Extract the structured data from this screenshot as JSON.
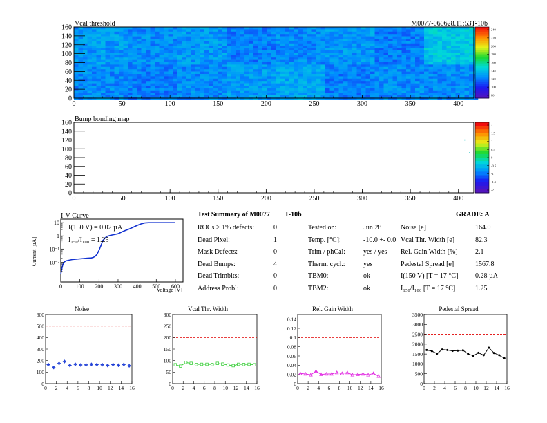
{
  "header": {
    "module_id": "M0077-060628.11:53T-10b"
  },
  "colors": {
    "noise": "#1f3fd6",
    "vcal": "#3ecf3e",
    "gain": "#e22ee2",
    "pedestal": "#000000",
    "limit": "#e00000",
    "iv": "#1030d0"
  },
  "chart_data": [
    {
      "type": "heatmap",
      "title": "Vcal threshold",
      "x_ticks": [
        0,
        50,
        100,
        150,
        200,
        250,
        300,
        350,
        400
      ],
      "y_ticks": [
        0,
        20,
        40,
        60,
        80,
        100,
        120,
        140,
        160
      ],
      "xlim": [
        0,
        416
      ],
      "ylim": [
        0,
        160
      ],
      "grid_cols": 8,
      "grid_rows": 2,
      "tile_levels": [
        [
          0.55,
          0.5,
          0.55,
          0.45,
          0.5,
          0.55,
          0.45,
          0.75
        ],
        [
          0.5,
          0.45,
          0.5,
          0.55,
          0.6,
          0.45,
          0.5,
          0.5
        ]
      ],
      "palette_labels": [
        "240",
        "220",
        "200",
        "180",
        "160",
        "140",
        "120",
        "100",
        "80"
      ]
    },
    {
      "type": "heatmap",
      "title": "Bump bonding map",
      "x_ticks": [
        0,
        50,
        100,
        150,
        200,
        250,
        300,
        350,
        400
      ],
      "y_ticks": [
        0,
        20,
        40,
        60,
        80,
        100,
        120,
        140,
        160
      ],
      "xlim": [
        0,
        416
      ],
      "ylim": [
        0,
        160
      ],
      "points": [
        [
          406,
          121
        ],
        [
          411,
          92
        ]
      ],
      "palette_labels": [
        "2",
        "1.5",
        "1",
        "0.5",
        "0",
        "-0.5",
        "-1",
        "-1.5",
        "-2"
      ]
    },
    {
      "type": "line",
      "title": "I-V-Curve",
      "xlabel": "Voltage [V]",
      "ylabel": "Current [µA]",
      "xlim": [
        0,
        640
      ],
      "x_ticks": [
        0,
        100,
        200,
        300,
        400,
        500,
        600
      ],
      "log_y": true,
      "y_ticks": [
        "10",
        "1",
        "10⁻¹",
        "10⁻²"
      ],
      "annotations": [
        "I(150 V) = 0.02 µA",
        "I₁₅₀/I₁₀₀ = 1.25"
      ],
      "x": [
        0,
        3,
        6,
        10,
        15,
        20,
        30,
        40,
        60,
        80,
        100,
        120,
        140,
        160,
        170,
        180,
        190,
        200,
        210,
        220,
        240,
        260,
        280,
        300,
        320,
        340,
        360,
        380,
        400,
        420,
        440,
        460,
        480,
        500,
        520,
        540,
        560,
        580,
        600
      ],
      "y": [
        0.0012,
        0.002,
        0.0035,
        0.006,
        0.009,
        0.011,
        0.013,
        0.014,
        0.016,
        0.017,
        0.018,
        0.019,
        0.02,
        0.021,
        0.023,
        0.028,
        0.04,
        0.08,
        0.18,
        0.45,
        0.9,
        1.1,
        1.25,
        1.45,
        2.0,
        2.6,
        3.4,
        4.6,
        6.2,
        8.0,
        9.5,
        10.0,
        10.0,
        10.0,
        10.0,
        10.0,
        10.0,
        10.0,
        10.0
      ]
    },
    {
      "type": "scatter",
      "title": "Noise",
      "xlim": [
        0,
        16
      ],
      "ylim": [
        0,
        600
      ],
      "x_ticks": [
        0,
        2,
        4,
        6,
        8,
        10,
        12,
        14,
        16
      ],
      "y_ticks": [
        0,
        100,
        200,
        300,
        400,
        500,
        600
      ],
      "limit": 500,
      "x": [
        0.5,
        1.5,
        2.5,
        3.5,
        4.5,
        5.5,
        6.5,
        7.5,
        8.5,
        9.5,
        10.5,
        11.5,
        12.5,
        13.5,
        14.5,
        15.5
      ],
      "values": [
        165,
        140,
        175,
        192,
        158,
        168,
        162,
        163,
        167,
        165,
        164,
        158,
        165,
        160,
        166,
        155
      ],
      "errors": [
        15,
        15,
        15,
        15,
        15,
        15,
        15,
        15,
        15,
        15,
        15,
        15,
        15,
        15,
        15,
        15
      ]
    },
    {
      "type": "line",
      "title": "Vcal Thr. Width",
      "xlim": [
        0,
        16
      ],
      "ylim": [
        0,
        300
      ],
      "x_ticks": [
        0,
        2,
        4,
        6,
        8,
        10,
        12,
        14,
        16
      ],
      "y_ticks": [
        0,
        50,
        100,
        150,
        200,
        250,
        300
      ],
      "limit": 200,
      "x": [
        0.5,
        1.5,
        2.5,
        3.5,
        4.5,
        5.5,
        6.5,
        7.5,
        8.5,
        9.5,
        10.5,
        11.5,
        12.5,
        13.5,
        14.5,
        15.5
      ],
      "values": [
        82,
        76,
        92,
        88,
        83,
        84,
        84,
        83,
        88,
        85,
        81,
        78,
        84,
        83,
        84,
        82
      ]
    },
    {
      "type": "line",
      "title": "Rel. Gain Width",
      "xlim": [
        0,
        16
      ],
      "ylim": [
        0,
        0.15
      ],
      "x_ticks": [
        0,
        2,
        4,
        6,
        8,
        10,
        12,
        14,
        16
      ],
      "y_ticks": [
        "0",
        "0.02",
        "0.04",
        "0.06",
        "0.08",
        "0.1",
        "0.12",
        "0.14"
      ],
      "y_tick_values": [
        0,
        0.02,
        0.04,
        0.06,
        0.08,
        0.1,
        0.12,
        0.14
      ],
      "limit": 0.1,
      "x": [
        0.5,
        1.5,
        2.5,
        3.5,
        4.5,
        5.5,
        6.5,
        7.5,
        8.5,
        9.5,
        10.5,
        11.5,
        12.5,
        13.5,
        14.5,
        15.5
      ],
      "values": [
        0.022,
        0.021,
        0.019,
        0.027,
        0.02,
        0.021,
        0.021,
        0.024,
        0.022,
        0.024,
        0.019,
        0.02,
        0.021,
        0.019,
        0.022,
        0.016
      ]
    },
    {
      "type": "line",
      "title": "Pedestal Spread",
      "xlim": [
        0,
        16
      ],
      "ylim": [
        0,
        3500
      ],
      "x_ticks": [
        0,
        2,
        4,
        6,
        8,
        10,
        12,
        14,
        16
      ],
      "y_ticks": [
        0,
        500,
        1000,
        1500,
        2000,
        2500,
        3000,
        3500
      ],
      "limit": 2500,
      "x": [
        0.5,
        1.5,
        2.5,
        3.5,
        4.5,
        5.5,
        6.5,
        7.5,
        8.5,
        9.5,
        10.5,
        11.5,
        12.5,
        13.5,
        14.5,
        15.5
      ],
      "values": [
        1700,
        1650,
        1520,
        1730,
        1700,
        1660,
        1670,
        1690,
        1500,
        1410,
        1560,
        1440,
        1820,
        1550,
        1440,
        1280
      ]
    }
  ],
  "summary": {
    "title": "Test Summary of M0077",
    "temp_tag": "T-10b",
    "grade": "GRADE:  A",
    "left": [
      {
        "label": "ROCs > 1% defects:",
        "value": "0"
      },
      {
        "label": "Dead Pixel:",
        "value": "1"
      },
      {
        "label": "Mask Defects:",
        "value": "0"
      },
      {
        "label": "Dead Bumps:",
        "value": "4"
      },
      {
        "label": "Dead Trimbits:",
        "value": "0"
      },
      {
        "label": "Address Probl:",
        "value": "0"
      }
    ],
    "middle": [
      {
        "label": "Tested on:",
        "value": "Jun 28"
      },
      {
        "label": "Temp. [°C]:",
        "value": "-10.0 +- 0.0"
      },
      {
        "label": "Trim / phCal:",
        "value": "yes / yes"
      },
      {
        "label": "Therm. cycl.:",
        "value": "yes"
      },
      {
        "label": "TBM0:",
        "value": "ok"
      },
      {
        "label": "TBM2:",
        "value": "ok"
      }
    ],
    "right": [
      {
        "label": "Noise [e]",
        "value": "164.0"
      },
      {
        "label": "Vcal Thr. Width [e]",
        "value": "82.3"
      },
      {
        "label": "Rel. Gain Width [%]",
        "value": "2.1"
      },
      {
        "label": "Pedestal Spread [e]",
        "value": "1567.8"
      },
      {
        "label": "I(150 V) [T = 17 °C]",
        "value": "0.28 µA"
      },
      {
        "label": "I₁₅₀/I₁₀₀   [T = 17 °C]",
        "value": "1.25"
      }
    ]
  }
}
